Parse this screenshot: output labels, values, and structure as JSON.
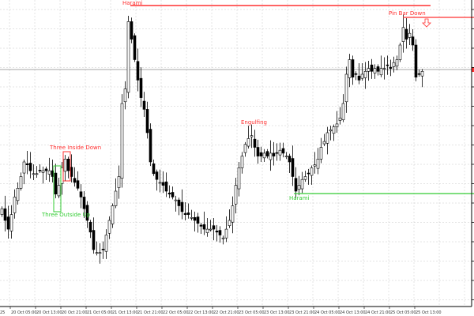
{
  "chart_data": {
    "type": "candlestick",
    "title": "",
    "xlabel": "",
    "ylabel": "",
    "grid": true,
    "x_tick_labels": [
      "25",
      "20 Oct 05:00",
      "20 Oct 13:00",
      "20 Oct 21:00",
      "21 Oct 05:00",
      "21 Oct 13:00",
      "21 Oct 21:00",
      "22 Oct 05:00",
      "22 Oct 13:00",
      "22 Oct 21:00",
      "23 Oct 05:00",
      "23 Oct 13:00",
      "23 Oct 21:00",
      "24 Oct 05:00",
      "24 Oct 13:00",
      "24 Oct 21:00",
      "25 Oct 05:00",
      "25 Oct 13:00"
    ],
    "ylim": [
      0,
      105
    ],
    "closes": [
      34,
      30,
      27,
      32,
      38,
      41,
      45,
      50,
      49,
      47,
      46,
      46,
      47,
      47,
      47,
      47,
      45,
      39,
      42,
      48,
      51,
      47,
      45,
      43,
      41,
      38,
      34,
      30,
      26,
      20,
      19,
      19,
      20,
      25,
      30,
      35,
      40,
      45,
      70,
      75,
      98,
      92,
      85,
      78,
      72,
      68,
      60,
      50,
      46,
      44,
      43,
      42,
      40,
      39,
      38,
      37,
      35,
      33,
      32,
      32,
      31,
      30,
      29,
      28,
      27,
      27,
      27,
      27,
      26,
      25,
      24,
      27,
      30,
      35,
      42,
      48,
      52,
      56,
      58,
      59,
      55,
      52,
      52,
      53,
      52,
      53,
      52,
      53,
      54,
      53,
      52,
      50,
      45,
      40,
      42,
      44,
      45,
      46,
      48,
      49,
      51,
      55,
      57,
      60,
      61,
      62,
      63,
      65,
      70,
      80,
      85,
      79,
      80,
      78,
      80,
      81,
      82,
      81,
      82,
      81,
      82,
      82,
      83,
      82,
      84,
      85,
      90,
      96,
      92,
      94,
      90,
      79,
      80,
      81
    ],
    "current_price_level": 82,
    "annotations": [
      {
        "label": "Harami",
        "color": "#ff3030",
        "level": 104
      },
      {
        "label": "Pin Bar Down",
        "color": "#ff3030",
        "level": 99
      },
      {
        "label": "Engulfing",
        "color": "#ff3030"
      },
      {
        "label": "Three Inside Down",
        "color": "#ff3030"
      },
      {
        "label": "Three Outside Up",
        "color": "#33cc33"
      },
      {
        "label": "Harami",
        "color": "#33cc33",
        "level": 39
      }
    ],
    "colors": {
      "bull": "#ffffff",
      "bear": "#000000",
      "outline": "#000000",
      "grid": "#c8c8c8",
      "bearish_pattern": "#ff3030",
      "bullish_pattern": "#33cc33"
    }
  }
}
